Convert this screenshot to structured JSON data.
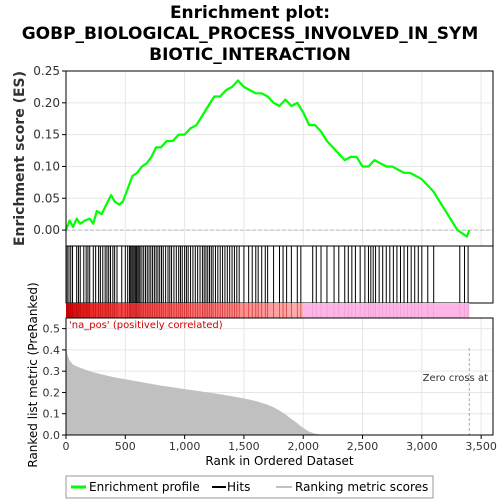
{
  "chart_data": {
    "type": "line",
    "title": "Enrichment plot: GOBP_BIOLOGICAL_PROCESS_INVOLVED_IN_SYMBIOTIC_INTERACTION",
    "title_lines": [
      "Enrichment plot:",
      "GOBP_BIOLOGICAL_PROCESS_INVOLVED_IN_SYM",
      "BIOTIC_INTERACTION"
    ],
    "xlabel": "Rank in Ordered Dataset",
    "xlim": [
      0,
      3600
    ],
    "x_ticks": [
      "0",
      "500",
      "1,000",
      "1,500",
      "2,000",
      "2,500",
      "3,000",
      "3,500"
    ],
    "x_tick_values": [
      0,
      500,
      1000,
      1500,
      2000,
      2500,
      3000,
      3500
    ],
    "top_panel": {
      "ylabel": "Enrichment score (ES)",
      "ylim": [
        -0.025,
        0.25
      ],
      "y_ticks": [
        "0.00",
        "0.05",
        "0.10",
        "0.15",
        "0.20",
        "0.25"
      ],
      "y_tick_values": [
        0,
        0.05,
        0.1,
        0.15,
        0.2,
        0.25
      ],
      "series": [
        {
          "name": "Enrichment profile",
          "color": "#00ff00",
          "x": [
            0,
            30,
            60,
            90,
            120,
            160,
            200,
            230,
            260,
            300,
            340,
            380,
            410,
            450,
            480,
            500,
            530,
            560,
            600,
            640,
            680,
            720,
            760,
            800,
            850,
            900,
            950,
            1000,
            1050,
            1100,
            1150,
            1200,
            1250,
            1300,
            1350,
            1400,
            1450,
            1500,
            1550,
            1600,
            1650,
            1700,
            1750,
            1800,
            1850,
            1900,
            1950,
            2000,
            2050,
            2100,
            2150,
            2200,
            2250,
            2300,
            2350,
            2400,
            2450,
            2500,
            2550,
            2600,
            2650,
            2700,
            2750,
            2800,
            2850,
            2900,
            2950,
            3000,
            3050,
            3100,
            3150,
            3200,
            3250,
            3300,
            3340,
            3380,
            3400
          ],
          "values": [
            0.0,
            0.015,
            0.005,
            0.018,
            0.01,
            0.015,
            0.018,
            0.01,
            0.03,
            0.025,
            0.04,
            0.055,
            0.045,
            0.04,
            0.045,
            0.055,
            0.07,
            0.085,
            0.09,
            0.1,
            0.105,
            0.115,
            0.13,
            0.13,
            0.14,
            0.14,
            0.15,
            0.15,
            0.16,
            0.165,
            0.18,
            0.195,
            0.21,
            0.21,
            0.22,
            0.225,
            0.235,
            0.225,
            0.22,
            0.215,
            0.215,
            0.21,
            0.2,
            0.195,
            0.205,
            0.195,
            0.2,
            0.185,
            0.165,
            0.165,
            0.155,
            0.14,
            0.13,
            0.12,
            0.11,
            0.115,
            0.115,
            0.1,
            0.1,
            0.11,
            0.105,
            0.1,
            0.1,
            0.095,
            0.09,
            0.09,
            0.085,
            0.08,
            0.07,
            0.06,
            0.045,
            0.03,
            0.015,
            0.0,
            -0.005,
            -0.01,
            0.0
          ]
        }
      ]
    },
    "hits": [
      10,
      25,
      40,
      55,
      90,
      105,
      120,
      150,
      170,
      185,
      200,
      230,
      250,
      275,
      290,
      310,
      330,
      345,
      360,
      375,
      395,
      410,
      430,
      470,
      500,
      520,
      535,
      545,
      555,
      565,
      575,
      585,
      595,
      605,
      615,
      625,
      640,
      655,
      670,
      685,
      700,
      715,
      730,
      745,
      760,
      775,
      790,
      805,
      820,
      840,
      860,
      875,
      890,
      910,
      930,
      950,
      965,
      980,
      1000,
      1015,
      1030,
      1050,
      1070,
      1090,
      1110,
      1130,
      1150,
      1165,
      1180,
      1195,
      1210,
      1225,
      1240,
      1260,
      1280,
      1300,
      1320,
      1340,
      1360,
      1380,
      1400,
      1420,
      1440,
      1460,
      1500,
      1540,
      1570,
      1600,
      1620,
      1650,
      1680,
      1700,
      1750,
      1800,
      1830,
      1860,
      1900,
      1950,
      1980,
      2080,
      2110,
      2150,
      2200,
      2260,
      2300,
      2350,
      2380,
      2410,
      2440,
      2480,
      2520,
      2550,
      2570,
      2590,
      2610,
      2640,
      2670,
      2700,
      2730,
      2760,
      2790,
      2820,
      2850,
      2880,
      2910,
      2940,
      2970,
      3000,
      3050,
      3100,
      3320,
      3360,
      3390
    ],
    "middle_band": {
      "red_until": 2000,
      "pink_until": 3400,
      "label": "'na_pos' (positively correlated)"
    },
    "bottom_panel": {
      "ylabel": "Ranked list metric (PreRanked)",
      "ylim": [
        0,
        0.55
      ],
      "y_ticks": [
        "0.0",
        "0.1",
        "0.2",
        "0.3",
        "0.4",
        "0.5"
      ],
      "y_tick_values": [
        0,
        0.1,
        0.2,
        0.3,
        0.4,
        0.5
      ],
      "series": [
        {
          "name": "Ranking metric scores",
          "color": "#c0c0c0",
          "x": [
            0,
            10,
            30,
            60,
            100,
            150,
            200,
            300,
            400,
            500,
            600,
            700,
            800,
            900,
            1000,
            1100,
            1200,
            1300,
            1400,
            1500,
            1600,
            1700,
            1750,
            1800,
            1850,
            1900,
            1950,
            2000,
            2050,
            2100,
            2150,
            2200,
            2300,
            2400,
            3000,
            3400
          ],
          "values": [
            0.43,
            0.38,
            0.35,
            0.33,
            0.32,
            0.31,
            0.3,
            0.285,
            0.272,
            0.262,
            0.252,
            0.242,
            0.232,
            0.224,
            0.216,
            0.208,
            0.2,
            0.192,
            0.182,
            0.172,
            0.16,
            0.142,
            0.13,
            0.115,
            0.097,
            0.075,
            0.055,
            0.033,
            0.016,
            0.006,
            0.002,
            0.001,
            0.0,
            0.0,
            0.0,
            0.0
          ]
        }
      ],
      "zero_cross_label": "Zero cross at",
      "zero_cross_rank": 3400
    },
    "legend": {
      "placement": "bottom",
      "entries": [
        {
          "label": "Enrichment profile",
          "color": "#00ff00"
        },
        {
          "label": "Hits",
          "color": "#000000"
        },
        {
          "label": "Ranking metric scores",
          "color": "#c0c0c0"
        }
      ]
    }
  }
}
